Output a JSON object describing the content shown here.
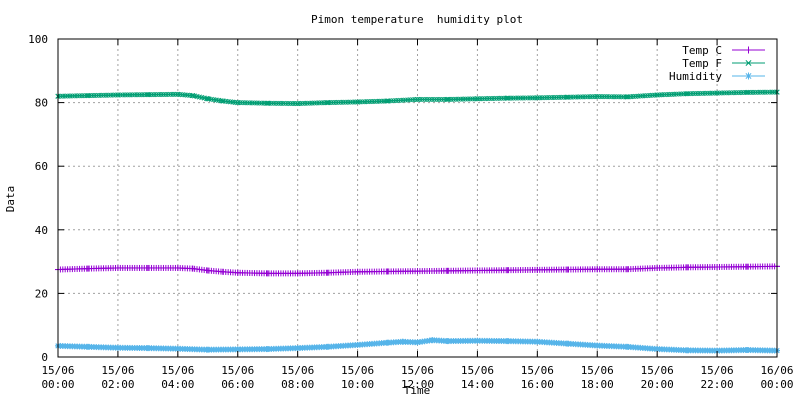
{
  "chart_data": {
    "type": "line",
    "title": "Pimon temperature  humidity plot",
    "xlabel": "Time",
    "ylabel": "Data",
    "ylim": [
      0,
      100
    ],
    "yticks": [
      "0",
      "20",
      "40",
      "60",
      "80",
      "100"
    ],
    "xlim": [
      0,
      24
    ],
    "xticks": [
      {
        "date": "15/06",
        "time": "00:00"
      },
      {
        "date": "15/06",
        "time": "02:00"
      },
      {
        "date": "15/06",
        "time": "04:00"
      },
      {
        "date": "15/06",
        "time": "06:00"
      },
      {
        "date": "15/06",
        "time": "08:00"
      },
      {
        "date": "15/06",
        "time": "10:00"
      },
      {
        "date": "15/06",
        "time": "12:00"
      },
      {
        "date": "15/06",
        "time": "14:00"
      },
      {
        "date": "15/06",
        "time": "16:00"
      },
      {
        "date": "15/06",
        "time": "18:00"
      },
      {
        "date": "15/06",
        "time": "20:00"
      },
      {
        "date": "15/06",
        "time": "22:00"
      },
      {
        "date": "16/06",
        "time": "00:00"
      }
    ],
    "grid": true,
    "legend": "top-right",
    "series": [
      {
        "name": "Temp C",
        "color": "#9400d3",
        "marker": "plus",
        "x": [
          0,
          1,
          2,
          3,
          4,
          4.5,
          5,
          5.5,
          6,
          7,
          8,
          9,
          10,
          11,
          12,
          13,
          14,
          15,
          16,
          17,
          18,
          19,
          20,
          21,
          22,
          23,
          24
        ],
        "values": [
          27.5,
          27.8,
          28.0,
          28.0,
          28.0,
          27.8,
          27.2,
          26.8,
          26.5,
          26.3,
          26.3,
          26.5,
          26.8,
          26.9,
          27.0,
          27.1,
          27.2,
          27.3,
          27.4,
          27.5,
          27.6,
          27.6,
          28.0,
          28.2,
          28.3,
          28.4,
          28.5
        ]
      },
      {
        "name": "Temp F",
        "color": "#009e73",
        "marker": "x",
        "x": [
          0,
          1,
          2,
          3,
          4,
          4.5,
          5,
          5.5,
          6,
          7,
          8,
          9,
          10,
          11,
          12,
          13,
          14,
          15,
          16,
          17,
          18,
          19,
          20,
          21,
          22,
          23,
          24
        ],
        "values": [
          82.0,
          82.2,
          82.4,
          82.5,
          82.6,
          82.2,
          81.2,
          80.5,
          80.0,
          79.8,
          79.7,
          80.0,
          80.2,
          80.5,
          81.0,
          81.0,
          81.2,
          81.4,
          81.5,
          81.7,
          81.9,
          81.8,
          82.4,
          82.8,
          83.0,
          83.2,
          83.3
        ]
      },
      {
        "name": "Humidity",
        "color": "#56b4e9",
        "marker": "star",
        "x": [
          0,
          1,
          2,
          3,
          4,
          5,
          6,
          7,
          8,
          9,
          10,
          11,
          11.5,
          12,
          12.5,
          13,
          14,
          15,
          16,
          17,
          18,
          19,
          20,
          21,
          22,
          23,
          24
        ],
        "values": [
          3.5,
          3.2,
          2.9,
          2.8,
          2.6,
          2.3,
          2.4,
          2.5,
          2.8,
          3.2,
          3.8,
          4.5,
          4.8,
          4.6,
          5.3,
          5.0,
          5.1,
          5.0,
          4.8,
          4.2,
          3.6,
          3.2,
          2.5,
          2.1,
          2.0,
          2.2,
          2.0
        ]
      }
    ]
  }
}
